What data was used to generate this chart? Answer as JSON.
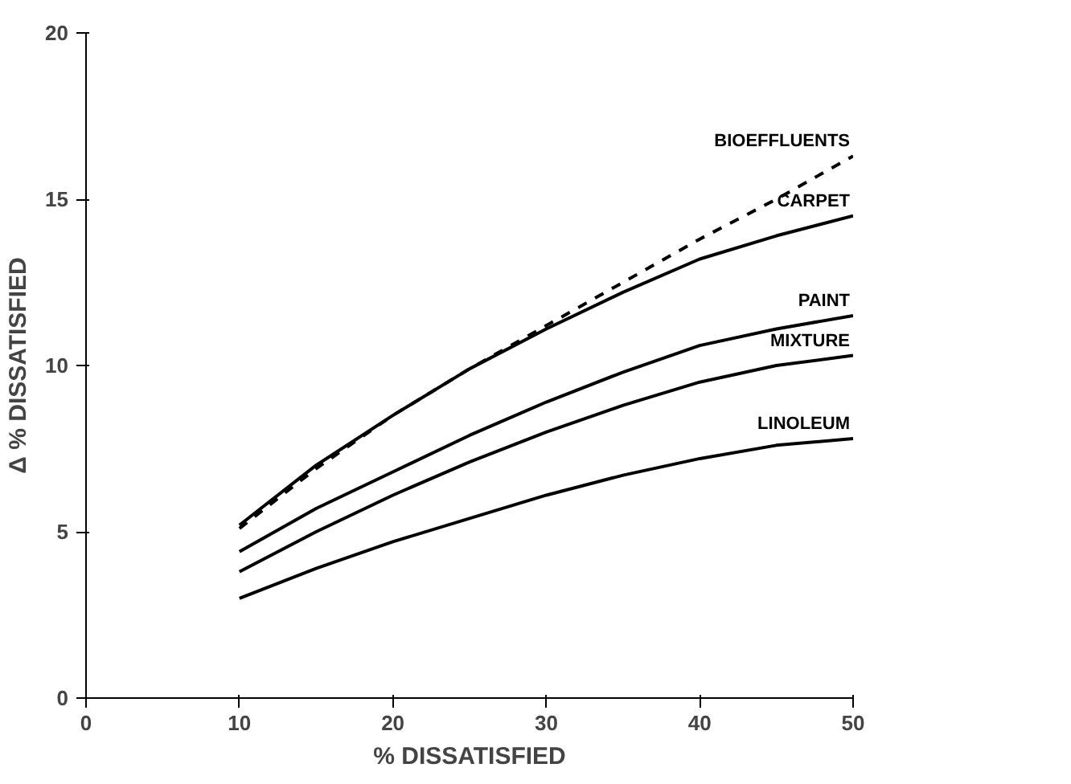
{
  "chart_data": {
    "type": "line",
    "xlabel": "% DISSATISFIED",
    "ylabel": "Δ % DISSATISFIED",
    "x": [
      10,
      15,
      20,
      25,
      30,
      35,
      40,
      45,
      50
    ],
    "xlim": [
      0,
      50
    ],
    "xticks": [
      0,
      10,
      20,
      30,
      40,
      50
    ],
    "ylim": [
      0,
      20
    ],
    "yticks": [
      0,
      5,
      10,
      15,
      20
    ],
    "grid": false,
    "marker": "none",
    "series": [
      {
        "name": "BIOEFFLUENTS",
        "color": "#000000",
        "line_style": "dashed",
        "values": [
          5.1,
          6.9,
          8.5,
          9.9,
          11.2,
          12.5,
          13.8,
          15.0,
          16.3
        ]
      },
      {
        "name": "CARPET",
        "color": "#000000",
        "line_style": "solid",
        "values": [
          5.2,
          7.0,
          8.5,
          9.9,
          11.1,
          12.2,
          13.2,
          13.9,
          14.5
        ]
      },
      {
        "name": "PAINT",
        "color": "#000000",
        "line_style": "solid",
        "values": [
          4.4,
          5.7,
          6.8,
          7.9,
          8.9,
          9.8,
          10.6,
          11.1,
          11.5
        ]
      },
      {
        "name": "MIXTURE",
        "color": "#000000",
        "line_style": "solid",
        "values": [
          3.8,
          5.0,
          6.1,
          7.1,
          8.0,
          8.8,
          9.5,
          10.0,
          10.3
        ]
      },
      {
        "name": "LINOLEUM",
        "color": "#000000",
        "line_style": "solid",
        "values": [
          3.0,
          3.9,
          4.7,
          5.4,
          6.1,
          6.7,
          7.2,
          7.6,
          7.8
        ]
      }
    ]
  }
}
